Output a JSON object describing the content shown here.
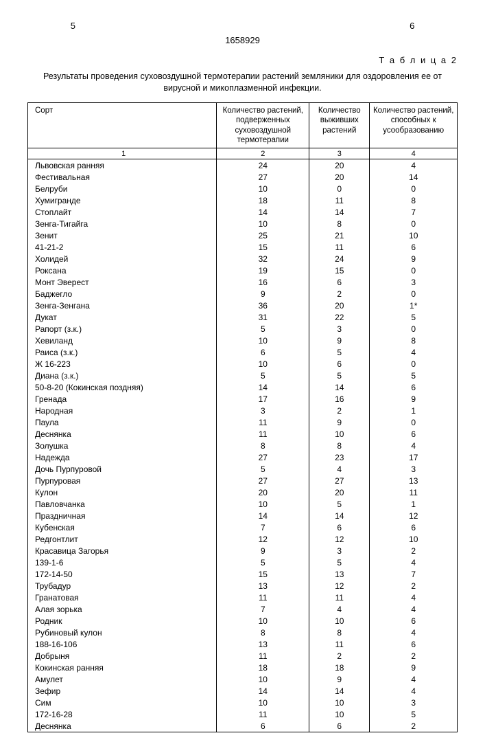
{
  "page_left": "5",
  "page_right": "6",
  "doc_number": "1658929",
  "table_label": "Т а б л и ц а 2",
  "caption": "Результаты проведения суховоздушной термотерапии растений земляники для оздоровления ее от вирусной и микоплазменной инфекции.",
  "headers": {
    "col1": "Сорт",
    "col2": "Количество растений, подверженных суховоздушной термотерапии",
    "col3": "Количество выживших растений",
    "col4": "Количество растений, способных к усообразованию"
  },
  "subheaders": {
    "c1": "1",
    "c2": "2",
    "c3": "3",
    "c4": "4"
  },
  "rows": [
    {
      "n": "Львовская ранняя",
      "a": "24",
      "b": "20",
      "c": "4"
    },
    {
      "n": "Фестивальная",
      "a": "27",
      "b": "20",
      "c": "14"
    },
    {
      "n": "Белруби",
      "a": "10",
      "b": "0",
      "c": "0"
    },
    {
      "n": "Хумигранде",
      "a": "18",
      "b": "11",
      "c": "8"
    },
    {
      "n": "Стоплайт",
      "a": "14",
      "b": "14",
      "c": "7"
    },
    {
      "n": "Зенга-Тигайга",
      "a": "10",
      "b": "8",
      "c": "0"
    },
    {
      "n": "Зенит",
      "a": "25",
      "b": "21",
      "c": "10"
    },
    {
      "n": "41-21-2",
      "a": "15",
      "b": "11",
      "c": "6"
    },
    {
      "n": "Холидей",
      "a": "32",
      "b": "24",
      "c": "9"
    },
    {
      "n": "Роксана",
      "a": "19",
      "b": "15",
      "c": "0"
    },
    {
      "n": "Монт Эверест",
      "a": "16",
      "b": "6",
      "c": "3"
    },
    {
      "n": "Баджегло",
      "a": "9",
      "b": "2",
      "c": "0"
    },
    {
      "n": "Зенга-Зенгана",
      "a": "36",
      "b": "20",
      "c": "1*"
    },
    {
      "n": "Дукат",
      "a": "31",
      "b": "22",
      "c": "5"
    },
    {
      "n": "Рапорт (з.к.)",
      "a": "5",
      "b": "3",
      "c": "0"
    },
    {
      "n": "Хевиланд",
      "a": "10",
      "b": "9",
      "c": "8"
    },
    {
      "n": "Раиса (з.к.)",
      "a": "6",
      "b": "5",
      "c": "4"
    },
    {
      "n": "Ж 16-223",
      "a": "10",
      "b": "6",
      "c": "0"
    },
    {
      "n": "Диана (з.к.)",
      "a": "5",
      "b": "5",
      "c": "5"
    },
    {
      "n": "50-8-20 (Кокинская поздняя)",
      "a": "14",
      "b": "14",
      "c": "6"
    },
    {
      "n": "Гренада",
      "a": "17",
      "b": "16",
      "c": "9"
    },
    {
      "n": "Народная",
      "a": "3",
      "b": "2",
      "c": "1"
    },
    {
      "n": "Паула",
      "a": "11",
      "b": "9",
      "c": "0"
    },
    {
      "n": "Деснянка",
      "a": "11",
      "b": "10",
      "c": "6"
    },
    {
      "n": "Золушка",
      "a": "8",
      "b": "8",
      "c": "4"
    },
    {
      "n": "Надежда",
      "a": "27",
      "b": "23",
      "c": "17"
    },
    {
      "n": "Дочь Пурпуровой",
      "a": "5",
      "b": "4",
      "c": "3"
    },
    {
      "n": "Пурпуровая",
      "a": "27",
      "b": "27",
      "c": "13"
    },
    {
      "n": "Кулон",
      "a": "20",
      "b": "20",
      "c": "11"
    },
    {
      "n": "Павловчанка",
      "a": "10",
      "b": "5",
      "c": "1"
    },
    {
      "n": "Праздничная",
      "a": "14",
      "b": "14",
      "c": "12"
    },
    {
      "n": "Кубенская",
      "a": "7",
      "b": "6",
      "c": "6"
    },
    {
      "n": "Редгонтлит",
      "a": "12",
      "b": "12",
      "c": "10"
    },
    {
      "n": "Красавица Загорья",
      "a": "9",
      "b": "3",
      "c": "2"
    },
    {
      "n": "139-1-6",
      "a": "5",
      "b": "5",
      "c": "4"
    },
    {
      "n": "172-14-50",
      "a": "15",
      "b": "13",
      "c": "7"
    },
    {
      "n": "Трубадур",
      "a": "13",
      "b": "12",
      "c": "2"
    },
    {
      "n": "Гранатовая",
      "a": "11",
      "b": "11",
      "c": "4"
    },
    {
      "n": "Алая зорька",
      "a": "7",
      "b": "4",
      "c": "4"
    },
    {
      "n": "Родник",
      "a": "10",
      "b": "10",
      "c": "6"
    },
    {
      "n": "Рубиновый кулон",
      "a": "8",
      "b": "8",
      "c": "4"
    },
    {
      "n": "188-16-106",
      "a": "13",
      "b": "11",
      "c": "6"
    },
    {
      "n": "Добрыня",
      "a": "11",
      "b": "2",
      "c": "2"
    },
    {
      "n": "Кокинская ранняя",
      "a": "18",
      "b": "18",
      "c": "9"
    },
    {
      "n": "Амулет",
      "a": "10",
      "b": "9",
      "c": "4"
    },
    {
      "n": "Зефир",
      "a": "14",
      "b": "14",
      "c": "4"
    },
    {
      "n": "Сим",
      "a": "10",
      "b": "10",
      "c": "3"
    },
    {
      "n": "172-16-28",
      "a": "11",
      "b": "10",
      "c": "5"
    },
    {
      "n": "Деснянка",
      "a": "6",
      "b": "6",
      "c": "2"
    }
  ]
}
